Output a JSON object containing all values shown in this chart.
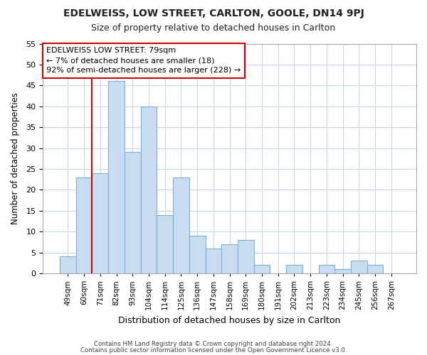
{
  "title": "EDELWEISS, LOW STREET, CARLTON, GOOLE, DN14 9PJ",
  "subtitle": "Size of property relative to detached houses in Carlton",
  "xlabel": "Distribution of detached houses by size in Carlton",
  "ylabel": "Number of detached properties",
  "bar_color": "#c9ddf0",
  "bar_edge_color": "#7bafd4",
  "background_color": "#ffffff",
  "grid_color": "#c8d8e8",
  "annotation_box_color": "#ffffff",
  "annotation_box_edge": "#cc0000",
  "vline_color": "#cc0000",
  "bins": [
    "49sqm",
    "60sqm",
    "71sqm",
    "82sqm",
    "93sqm",
    "104sqm",
    "114sqm",
    "125sqm",
    "136sqm",
    "147sqm",
    "158sqm",
    "169sqm",
    "180sqm",
    "191sqm",
    "202sqm",
    "213sqm",
    "223sqm",
    "234sqm",
    "245sqm",
    "256sqm",
    "267sqm"
  ],
  "values": [
    4,
    23,
    24,
    46,
    29,
    40,
    14,
    23,
    9,
    6,
    7,
    8,
    2,
    0,
    2,
    0,
    2,
    1,
    3,
    2,
    0
  ],
  "vline_position": 1.5,
  "annotation_lines": [
    "EDELWEISS LOW STREET: 79sqm",
    "← 7% of detached houses are smaller (18)",
    "92% of semi-detached houses are larger (228) →"
  ],
  "footer1": "Contains HM Land Registry data © Crown copyright and database right 2024.",
  "footer2": "Contains public sector information licensed under the Open Government Licence v3.0.",
  "ylim": [
    0,
    55
  ],
  "yticks": [
    0,
    5,
    10,
    15,
    20,
    25,
    30,
    35,
    40,
    45,
    50,
    55
  ]
}
